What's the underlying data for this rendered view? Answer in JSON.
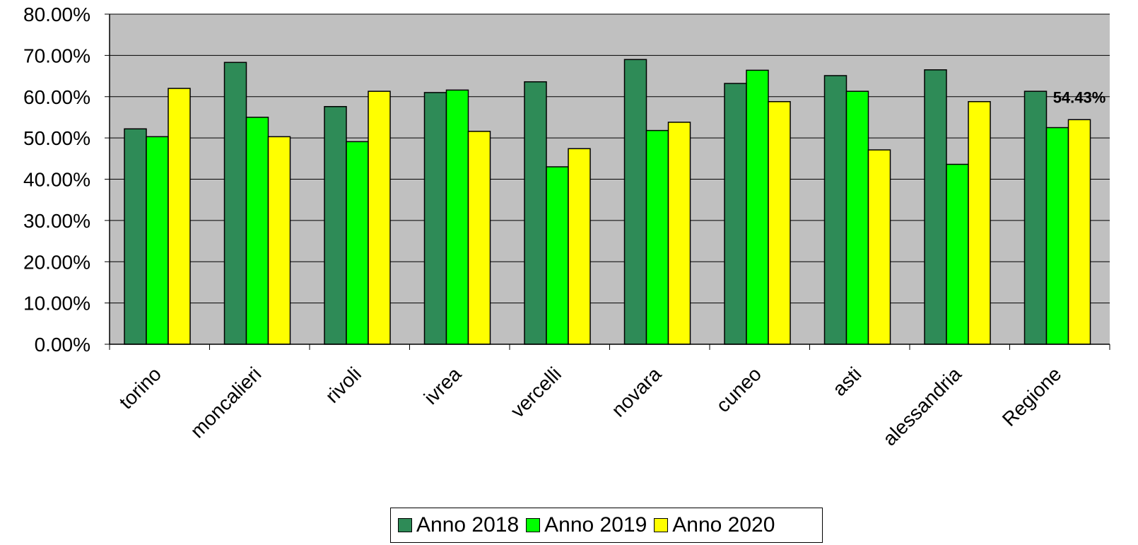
{
  "chart_data": {
    "type": "bar",
    "title": "",
    "xlabel": "",
    "ylabel": "",
    "ylim": [
      0,
      0.8
    ],
    "yticks": [
      "0.00%",
      "10.00%",
      "20.00%",
      "30.00%",
      "40.00%",
      "50.00%",
      "60.00%",
      "70.00%",
      "80.00%"
    ],
    "grid": true,
    "legend_position": "bottom",
    "plot_background": "#c0c0c0",
    "categories": [
      "torino",
      "moncalieri",
      "rivoli",
      "ivrea",
      "vercelli",
      "novara",
      "cuneo",
      "asti",
      "alessandria",
      "Regione"
    ],
    "series": [
      {
        "name": "Anno 2018",
        "color": "#2e8b57",
        "values": [
          0.522,
          0.683,
          0.576,
          0.61,
          0.636,
          0.69,
          0.632,
          0.651,
          0.665,
          0.613
        ]
      },
      {
        "name": "Anno 2019",
        "color": "#00ff00",
        "values": [
          0.503,
          0.55,
          0.491,
          0.616,
          0.43,
          0.518,
          0.664,
          0.613,
          0.436,
          0.525
        ]
      },
      {
        "name": "Anno 2020",
        "color": "#ffff00",
        "values": [
          0.62,
          0.503,
          0.613,
          0.516,
          0.474,
          0.538,
          0.588,
          0.471,
          0.588,
          0.5443
        ]
      }
    ],
    "annotations": [
      {
        "category": "Regione",
        "series": "Anno 2020",
        "text": "54.43%"
      }
    ]
  }
}
